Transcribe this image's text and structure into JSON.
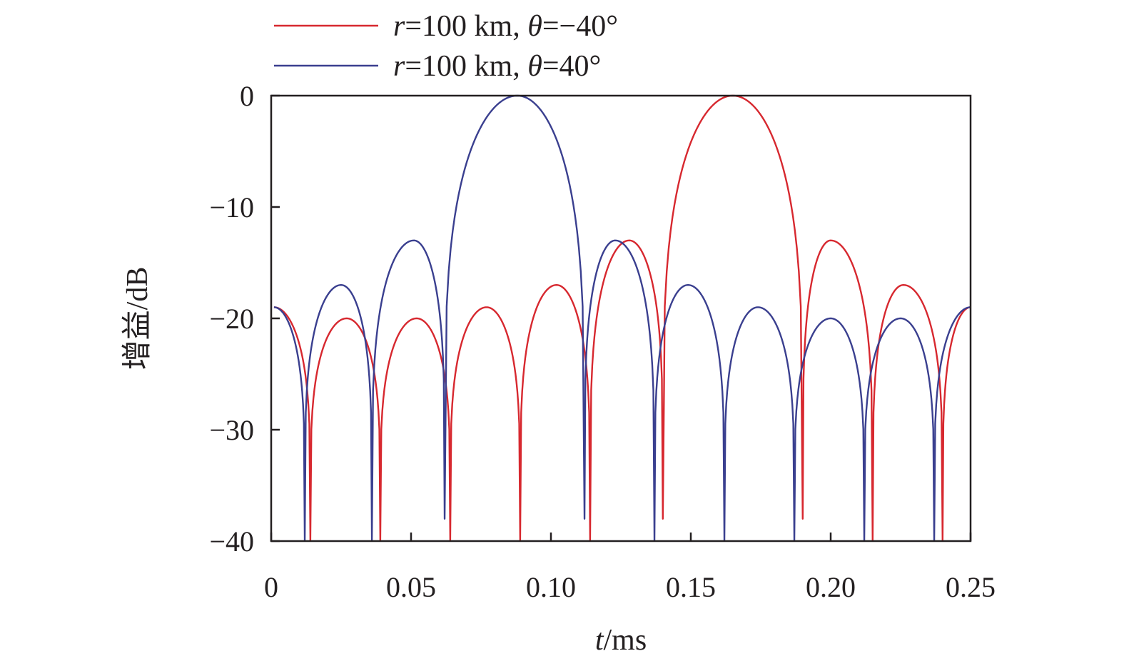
{
  "chart_data": {
    "type": "line",
    "title": "",
    "xlabel": {
      "var": "t",
      "unit": "/ms"
    },
    "ylabel": "增益/dB",
    "xlim": [
      0,
      0.25
    ],
    "ylim": [
      -40,
      0
    ],
    "xticks": [
      0,
      0.05,
      0.1,
      0.15,
      0.2,
      0.25
    ],
    "xtick_labels": [
      "0",
      "0.05",
      "0.10",
      "0.15",
      "0.20",
      "0.25"
    ],
    "yticks": [
      0,
      -10,
      -20,
      -30,
      -40
    ],
    "ytick_labels": [
      "0",
      "−10",
      "−20",
      "−30",
      "−40"
    ],
    "grid": false,
    "legend_placement": "top-center, above plot",
    "series": [
      {
        "name": {
          "r": "r",
          "rest": "=100 km, ",
          "theta": "θ",
          "tail": "=−40°"
        },
        "color": "#d7282f",
        "peak_t": 0.165,
        "points": [
          [
            0.001,
            -19
          ],
          [
            0.014,
            -40
          ],
          [
            0.027,
            -20
          ],
          [
            0.039,
            -40
          ],
          [
            0.052,
            -20
          ],
          [
            0.064,
            -40
          ],
          [
            0.077,
            -19
          ],
          [
            0.089,
            -40
          ],
          [
            0.102,
            -17
          ],
          [
            0.114,
            -40
          ],
          [
            0.128,
            -13
          ],
          [
            0.14,
            -38
          ],
          [
            0.165,
            0
          ],
          [
            0.19,
            -38
          ],
          [
            0.2,
            -13
          ],
          [
            0.215,
            -40
          ],
          [
            0.226,
            -17
          ],
          [
            0.24,
            -40
          ],
          [
            0.25,
            -19
          ]
        ]
      },
      {
        "name": {
          "r": "r",
          "rest": "=100 km, ",
          "theta": "θ",
          "tail": "=40°"
        },
        "color": "#3a3f8f",
        "peak_t": 0.088,
        "points": [
          [
            0.001,
            -19
          ],
          [
            0.012,
            -40
          ],
          [
            0.025,
            -17
          ],
          [
            0.036,
            -40
          ],
          [
            0.051,
            -13
          ],
          [
            0.062,
            -38
          ],
          [
            0.088,
            0
          ],
          [
            0.112,
            -38
          ],
          [
            0.123,
            -13
          ],
          [
            0.137,
            -40
          ],
          [
            0.149,
            -17
          ],
          [
            0.162,
            -40
          ],
          [
            0.174,
            -19
          ],
          [
            0.187,
            -40
          ],
          [
            0.2,
            -20
          ],
          [
            0.212,
            -40
          ],
          [
            0.225,
            -20
          ],
          [
            0.237,
            -40
          ],
          [
            0.25,
            -19
          ]
        ]
      }
    ]
  }
}
